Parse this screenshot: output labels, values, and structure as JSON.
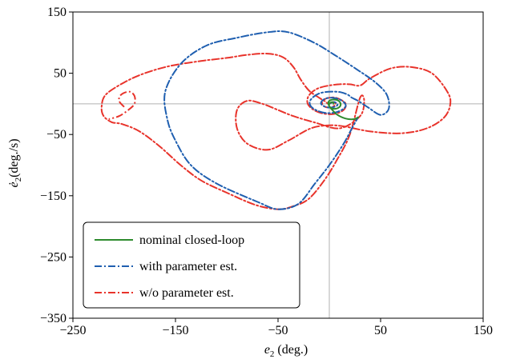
{
  "chart_data": {
    "type": "line",
    "title": "",
    "xlabel": {
      "main": "e",
      "sub": "2",
      "rest": " (deg.)"
    },
    "ylabel": {
      "main": "ė",
      "sub": "2",
      "rest": "(deg./s)"
    },
    "xlim": [
      -250,
      150
    ],
    "ylim": [
      -350,
      150
    ],
    "xticks": [
      -250,
      -150,
      -50,
      50,
      150
    ],
    "yticks": [
      -350,
      -250,
      -150,
      -50,
      50,
      150
    ],
    "xtick_labels": [
      "−250",
      "−150",
      "−50",
      "50",
      "150"
    ],
    "ytick_labels": [
      "−350",
      "−250",
      "−150",
      "−50",
      "50",
      "150"
    ],
    "reference_lines": {
      "x": 0,
      "y": 0
    },
    "legend_position": "lower-left",
    "series": [
      {
        "name": "nominal closed-loop",
        "color": "#2e8b2e",
        "style": "solid",
        "points": [
          [
            28,
            -22
          ],
          [
            24,
            -25
          ],
          [
            16,
            -24
          ],
          [
            8,
            -18
          ],
          [
            3,
            -10
          ],
          [
            0,
            -4
          ],
          [
            -1,
            2
          ],
          [
            1,
            6
          ],
          [
            5,
            7
          ],
          [
            9,
            5
          ],
          [
            11,
            0
          ],
          [
            10,
            -5
          ],
          [
            6,
            -8
          ],
          [
            2,
            -7
          ],
          [
            0,
            -4
          ],
          [
            0,
            0
          ],
          [
            1,
            2
          ],
          [
            3,
            3
          ],
          [
            4,
            2
          ],
          [
            4,
            0
          ]
        ]
      },
      {
        "name": "with parameter est.",
        "color": "#1f5fb0",
        "style": "dashdot",
        "points": [
          [
            0,
            0
          ],
          [
            2,
            2
          ],
          [
            5,
            3
          ],
          [
            7,
            1
          ],
          [
            8,
            -2
          ],
          [
            5,
            -5
          ],
          [
            0,
            -6
          ],
          [
            -5,
            -4
          ],
          [
            -8,
            0
          ],
          [
            -7,
            5
          ],
          [
            -3,
            9
          ],
          [
            3,
            10
          ],
          [
            9,
            8
          ],
          [
            14,
            3
          ],
          [
            16,
            -3
          ],
          [
            13,
            -9
          ],
          [
            6,
            -14
          ],
          [
            -3,
            -15
          ],
          [
            -12,
            -11
          ],
          [
            -18,
            -4
          ],
          [
            -19,
            4
          ],
          [
            -15,
            12
          ],
          [
            -8,
            18
          ],
          [
            2,
            20
          ],
          [
            11,
            19
          ],
          [
            18,
            15
          ],
          [
            22,
            10
          ],
          [
            28,
            5
          ],
          [
            38,
            -6
          ],
          [
            50,
            -18
          ],
          [
            58,
            -8
          ],
          [
            56,
            15
          ],
          [
            45,
            35
          ],
          [
            28,
            55
          ],
          [
            5,
            80
          ],
          [
            -15,
            100
          ],
          [
            -40,
            117
          ],
          [
            -60,
            117
          ],
          [
            -90,
            108
          ],
          [
            -120,
            95
          ],
          [
            -145,
            65
          ],
          [
            -160,
            20
          ],
          [
            -158,
            -25
          ],
          [
            -150,
            -60
          ],
          [
            -135,
            -100
          ],
          [
            -110,
            -130
          ],
          [
            -70,
            -160
          ],
          [
            -50,
            -172
          ],
          [
            -30,
            -163
          ],
          [
            -14,
            -130
          ],
          [
            0,
            -100
          ],
          [
            14,
            -65
          ],
          [
            22,
            -40
          ],
          [
            28,
            -22
          ]
        ]
      },
      {
        "name": "w/o parameter est.",
        "color": "#e8332b",
        "style": "dashdot",
        "points": [
          [
            0,
            0
          ],
          [
            4,
            3
          ],
          [
            6,
            0
          ],
          [
            4,
            -4
          ],
          [
            0,
            -6
          ],
          [
            -5,
            -4
          ],
          [
            -7,
            1
          ],
          [
            -5,
            7
          ],
          [
            0,
            10
          ],
          [
            6,
            10
          ],
          [
            12,
            6
          ],
          [
            16,
            0
          ],
          [
            15,
            -8
          ],
          [
            10,
            -14
          ],
          [
            2,
            -17
          ],
          [
            -8,
            -15
          ],
          [
            -16,
            -9
          ],
          [
            -21,
            0
          ],
          [
            -21,
            10
          ],
          [
            -17,
            19
          ],
          [
            -10,
            26
          ],
          [
            0,
            30
          ],
          [
            10,
            32
          ],
          [
            20,
            32
          ],
          [
            30,
            30
          ],
          [
            40,
            42
          ],
          [
            60,
            58
          ],
          [
            80,
            60
          ],
          [
            100,
            50
          ],
          [
            115,
            20
          ],
          [
            118,
            0
          ],
          [
            112,
            -22
          ],
          [
            95,
            -40
          ],
          [
            70,
            -48
          ],
          [
            40,
            -45
          ],
          [
            15,
            -37
          ],
          [
            0,
            -35
          ],
          [
            -18,
            -40
          ],
          [
            -40,
            -60
          ],
          [
            -60,
            -75
          ],
          [
            -80,
            -65
          ],
          [
            -90,
            -40
          ],
          [
            -90,
            -10
          ],
          [
            -80,
            5
          ],
          [
            -65,
            0
          ],
          [
            -50,
            -10
          ],
          [
            -35,
            -20
          ],
          [
            -15,
            -30
          ],
          [
            10,
            -40
          ],
          [
            30,
            -20
          ],
          [
            34,
            5
          ],
          [
            30,
            10
          ],
          [
            20,
            -50
          ],
          [
            8,
            -90
          ],
          [
            -5,
            -125
          ],
          [
            -20,
            -155
          ],
          [
            -35,
            -167
          ],
          [
            -50,
            -172
          ],
          [
            -72,
            -165
          ],
          [
            -100,
            -145
          ],
          [
            -125,
            -125
          ],
          [
            -145,
            -100
          ],
          [
            -165,
            -70
          ],
          [
            -185,
            -45
          ],
          [
            -202,
            -33
          ],
          [
            -212,
            -30
          ],
          [
            -220,
            -20
          ],
          [
            -222,
            -5
          ],
          [
            -218,
            15
          ],
          [
            -200,
            35
          ],
          [
            -180,
            50
          ],
          [
            -155,
            62
          ],
          [
            -125,
            70
          ],
          [
            -100,
            75
          ],
          [
            -80,
            80
          ],
          [
            -60,
            82
          ],
          [
            -45,
            76
          ],
          [
            -35,
            60
          ],
          [
            -28,
            40
          ],
          [
            -20,
            22
          ],
          [
            -10,
            10
          ],
          [
            -4,
            4
          ],
          [
            -2,
            1
          ],
          [
            0,
            0
          ]
        ],
        "inner_loop": [
          [
            -200,
            -5
          ],
          [
            -205,
            5
          ],
          [
            -203,
            15
          ],
          [
            -195,
            20
          ],
          [
            -190,
            13
          ],
          [
            -190,
            0
          ],
          [
            -196,
            -10
          ],
          [
            -205,
            -20
          ],
          [
            -215,
            -25
          ]
        ]
      }
    ]
  }
}
